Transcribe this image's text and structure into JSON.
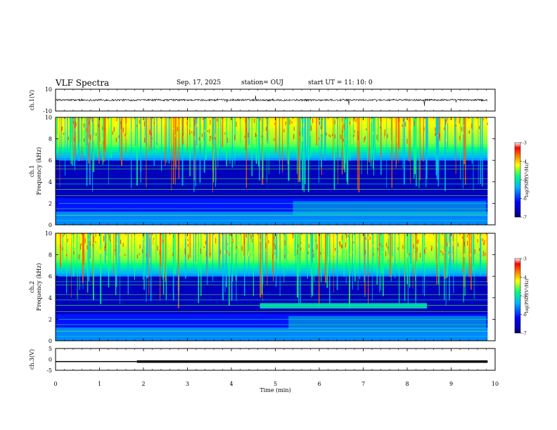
{
  "header": {
    "title": "VLF Spectra",
    "date": "Sep. 17, 2025",
    "station": "station= OUJ",
    "start": "start  UT =   11: 10: 0"
  },
  "chart_data": [
    {
      "type": "line",
      "name": "ch1-waveform",
      "ylabel": "ch.1(V)",
      "ylim": [
        -10,
        10
      ],
      "y_ticks": [
        "10",
        "-10"
      ],
      "xlim": [
        0,
        10
      ]
    },
    {
      "type": "heatmap",
      "name": "ch1-spectrogram",
      "ylabel_line1": "ch.1",
      "ylabel_line2": "Frequency (kHz)",
      "ylim": [
        0,
        10
      ],
      "y_ticks": [
        "0",
        "2",
        "4",
        "6",
        "8",
        "10"
      ],
      "xlim": [
        0,
        10
      ],
      "data_end_min": 9.83,
      "colorbar": {
        "label": "log(PSD)(V²/Hz)",
        "range": [
          -7,
          -3
        ],
        "ticks": [
          "-3",
          "-4",
          "-5",
          "-6",
          "-7"
        ]
      }
    },
    {
      "type": "heatmap",
      "name": "ch2-spectrogram",
      "ylabel_line1": "ch.2",
      "ylabel_line2": "Frequency (kHz)",
      "ylim": [
        0,
        10
      ],
      "y_ticks": [
        "0",
        "2",
        "4",
        "6",
        "8",
        "10"
      ],
      "xlim": [
        0,
        10
      ],
      "data_end_min": 9.83,
      "colorbar": {
        "label": "log(PSD)(V²/Hz)",
        "range": [
          -7,
          -3
        ],
        "ticks": [
          "-3",
          "-4",
          "-5",
          "-6",
          "-7"
        ]
      }
    },
    {
      "type": "line",
      "name": "ch3-signal",
      "ylabel": "ch.3(V)",
      "ylim": [
        -5,
        5
      ],
      "y_ticks": [
        "5",
        "0",
        "-5"
      ],
      "xlim": [
        0,
        10
      ],
      "x": [
        0,
        1.85,
        1.85,
        9.83
      ],
      "y": [
        -1,
        -1,
        -1,
        -1
      ],
      "xlabel": "Time (min)",
      "x_ticks": [
        "0",
        "1",
        "2",
        "3",
        "4",
        "5",
        "6",
        "7",
        "8",
        "9",
        "10"
      ]
    }
  ],
  "colors": {
    "frame": "#000000",
    "colormap": [
      "#00007a",
      "#0000ff",
      "#00b4ff",
      "#00ff80",
      "#ffff00",
      "#ff8000",
      "#ff0000",
      "#ffffff"
    ]
  }
}
